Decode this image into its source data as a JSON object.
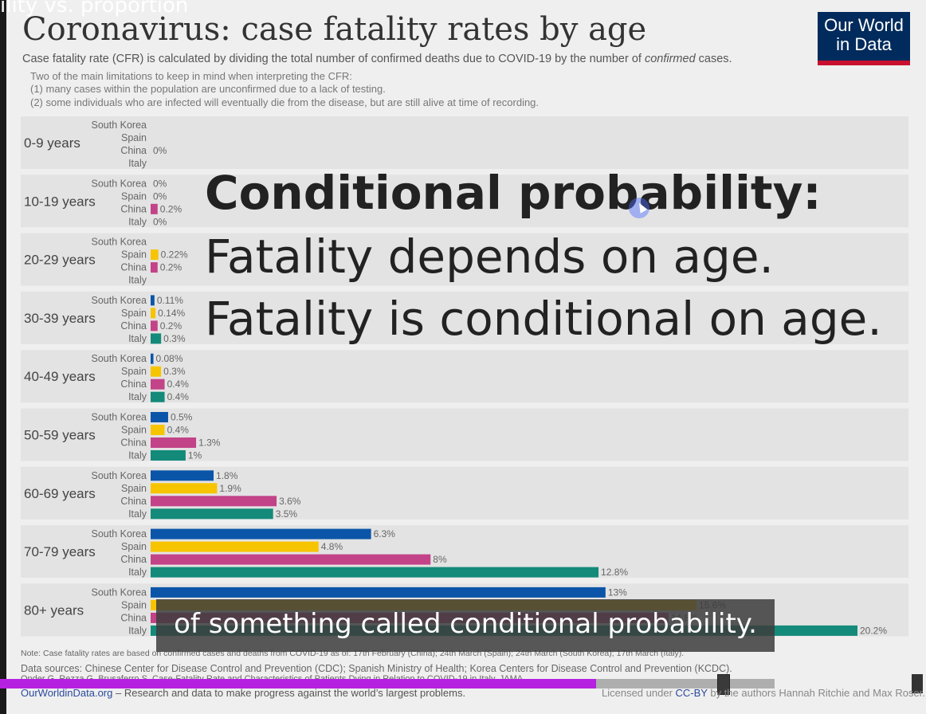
{
  "video": {
    "title": "ility vs. proportion",
    "caption": "of something called conditional probability.",
    "overlay": {
      "line1": "Conditional probability:",
      "line2": "Fatality depends on age.",
      "line3": "Fatality is conditional on age."
    },
    "progress": 0.77
  },
  "logo": {
    "line1": "Our World",
    "line2": "in Data"
  },
  "colors": {
    "South Korea": "#0a55a8",
    "Spain": "#f7c400",
    "China": "#c24388",
    "Italy": "#138a7a"
  },
  "chart_data": {
    "type": "bar",
    "orientation": "horizontal",
    "title": "Coronavirus: case fatality rates by age",
    "subtitle_pre": "Case fatality rate (CFR) is calculated by dividing the total number of confirmed deaths due to COVID-19 by the number of ",
    "subtitle_em": "confirmed",
    "subtitle_post": " cases.",
    "notes": [
      "Two of the main limitations to keep in mind when interpreting the CFR:",
      "(1) many cases within the population are unconfirmed due to a lack of testing.",
      "(2) some individuals who are infected will eventually die from the disease, but are still alive at time of recording."
    ],
    "countries": [
      "South Korea",
      "Spain",
      "China",
      "Italy"
    ],
    "groups": [
      {
        "label": "0-9 years",
        "values": [
          null,
          null,
          0,
          null
        ],
        "labels": [
          "",
          "",
          "0%",
          ""
        ]
      },
      {
        "label": "10-19 years",
        "values": [
          0,
          0,
          0.2,
          0
        ],
        "labels": [
          "0%",
          "0%",
          "0.2%",
          "0%"
        ]
      },
      {
        "label": "20-29 years",
        "values": [
          null,
          0.22,
          0.2,
          null
        ],
        "labels": [
          "",
          "0.22%",
          "0.2%",
          ""
        ]
      },
      {
        "label": "30-39 years",
        "values": [
          0.11,
          0.14,
          0.2,
          0.3
        ],
        "labels": [
          "0.11%",
          "0.14%",
          "0.2%",
          "0.3%"
        ]
      },
      {
        "label": "40-49 years",
        "values": [
          0.08,
          0.3,
          0.4,
          0.4
        ],
        "labels": [
          "0.08%",
          "0.3%",
          "0.4%",
          "0.4%"
        ]
      },
      {
        "label": "50-59 years",
        "values": [
          0.5,
          0.4,
          1.3,
          1
        ],
        "labels": [
          "0.5%",
          "0.4%",
          "1.3%",
          "1%"
        ]
      },
      {
        "label": "60-69 years",
        "values": [
          1.8,
          1.9,
          3.6,
          3.5
        ],
        "labels": [
          "1.8%",
          "1.9%",
          "3.6%",
          "3.5%"
        ]
      },
      {
        "label": "70-79 years",
        "values": [
          6.3,
          4.8,
          8,
          12.8
        ],
        "labels": [
          "6.3%",
          "4.8%",
          "8%",
          "12.8%"
        ]
      },
      {
        "label": "80+ years",
        "values": [
          13,
          15.6,
          14.8,
          20.2
        ],
        "labels": [
          "13%",
          "15.6%",
          "14.8%",
          "20.2%"
        ]
      }
    ],
    "xlim": [
      0,
      20.2
    ]
  },
  "footer": {
    "note": "Note: Case fatality rates are based on confirmed cases and deaths from COVID-19 as of: 17th February (China); 24th March (Spain); 24th March (South Korea); 17th March (Italy).",
    "sources": "Data sources: Chinese Center for Disease Control and Prevention (CDC); Spanish Ministry of Health; Korea Centers for Disease Control and Prevention (KCDC).",
    "sources2": "Onder G, Rezza G, Brusaferro S. Case-Fatality Rate and Characteristics of Patients Dying in Relation to COVID-19 in Italy. JAMA.",
    "site": "OurWorldinData.org",
    "site_tagline": " – Research and data to make progress against the world’s largest problems.",
    "license_pre": "Licensed under ",
    "license_cc": "CC-BY",
    "license_post": " by the authors Hannah Ritchie and Max Roser."
  }
}
